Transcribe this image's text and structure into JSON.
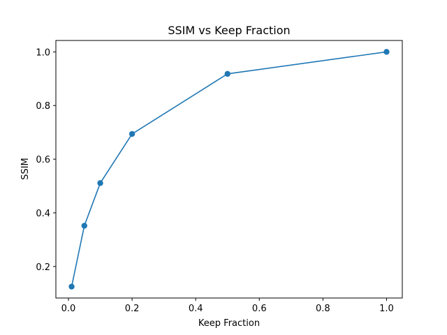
{
  "chart_data": {
    "type": "line",
    "title": "SSIM vs Keep Fraction",
    "xlabel": "Keep Fraction",
    "ylabel": "SSIM",
    "xlim": [
      -0.0395,
      1.0495
    ],
    "ylim": [
      0.0825,
      1.0425
    ],
    "xticks": [
      0.0,
      0.2,
      0.4,
      0.6,
      0.8,
      1.0
    ],
    "xtick_labels": [
      "0.0",
      "0.2",
      "0.4",
      "0.6",
      "0.8",
      "1.0"
    ],
    "yticks": [
      0.2,
      0.4,
      0.6,
      0.8,
      1.0
    ],
    "ytick_labels": [
      "0.2",
      "0.4",
      "0.6",
      "0.8",
      "1.0"
    ],
    "grid": false,
    "color": "#1f77b4",
    "series": [
      {
        "x": [
          0.01,
          0.05,
          0.1,
          0.2,
          0.5,
          1.0
        ],
        "y": [
          0.125,
          0.352,
          0.511,
          0.694,
          0.918,
          1.0
        ]
      }
    ]
  }
}
